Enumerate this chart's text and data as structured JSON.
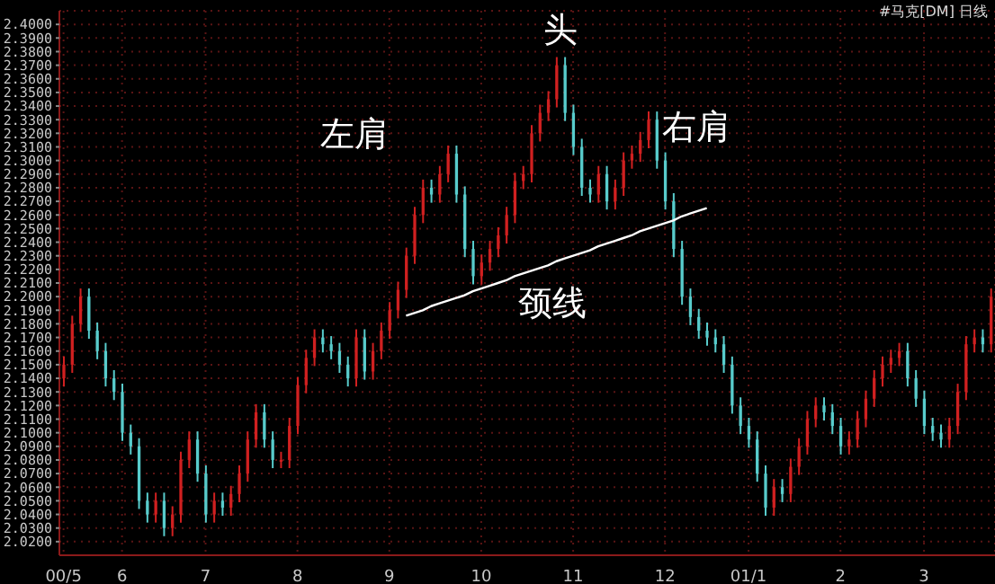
{
  "chart_data": {
    "type": "candlestick",
    "subtitle": "#马克[DM] 日线",
    "categories": [
      "00/5",
      null,
      null,
      null,
      null,
      null,
      null,
      "6",
      null,
      null,
      null,
      null,
      null,
      null,
      null,
      null,
      null,
      "7",
      null,
      null,
      null,
      null,
      null,
      null,
      null,
      null,
      null,
      null,
      "8",
      null,
      null,
      null,
      null,
      null,
      null,
      null,
      null,
      null,
      null,
      "9",
      null,
      null,
      null,
      null,
      null,
      null,
      null,
      null,
      null,
      null,
      "10",
      null,
      null,
      null,
      null,
      null,
      null,
      null,
      null,
      null,
      null,
      "11",
      null,
      null,
      null,
      null,
      null,
      null,
      null,
      null,
      null,
      null,
      "12",
      null,
      null,
      null,
      null,
      null,
      null,
      null,
      null,
      null,
      "01/1",
      null,
      null,
      null,
      null,
      null,
      null,
      null,
      null,
      null,
      null,
      "2",
      null,
      null,
      null,
      null,
      null,
      null,
      null,
      null,
      null,
      "3",
      null,
      null,
      null,
      null,
      null,
      null,
      null,
      null
    ],
    "ohlc": [
      [
        2.14,
        2.156,
        2.134,
        2.15
      ],
      [
        2.15,
        2.186,
        2.144,
        2.18
      ],
      [
        2.18,
        2.206,
        2.174,
        2.2
      ],
      [
        2.2,
        2.206,
        2.169,
        2.175
      ],
      [
        2.175,
        2.181,
        2.154,
        2.16
      ],
      [
        2.16,
        2.166,
        2.134,
        2.14
      ],
      [
        2.14,
        2.146,
        2.124,
        2.13
      ],
      [
        2.13,
        2.136,
        2.094,
        2.1
      ],
      [
        2.1,
        2.106,
        2.084,
        2.09
      ],
      [
        2.09,
        2.096,
        2.044,
        2.05
      ],
      [
        2.05,
        2.056,
        2.034,
        2.04
      ],
      [
        2.04,
        2.056,
        2.034,
        2.05
      ],
      [
        2.05,
        2.056,
        2.024,
        2.03
      ],
      [
        2.03,
        2.046,
        2.024,
        2.04
      ],
      [
        2.04,
        2.086,
        2.034,
        2.08
      ],
      [
        2.08,
        2.101,
        2.074,
        2.095
      ],
      [
        2.095,
        2.101,
        2.064,
        2.07
      ],
      [
        2.07,
        2.076,
        2.034,
        2.04
      ],
      [
        2.04,
        2.056,
        2.034,
        2.05
      ],
      [
        2.05,
        2.056,
        2.039,
        2.045
      ],
      [
        2.045,
        2.061,
        2.039,
        2.055
      ],
      [
        2.055,
        2.076,
        2.049,
        2.07
      ],
      [
        2.07,
        2.101,
        2.064,
        2.095
      ],
      [
        2.095,
        2.121,
        2.089,
        2.115
      ],
      [
        2.115,
        2.121,
        2.089,
        2.095
      ],
      [
        2.095,
        2.101,
        2.074,
        2.08
      ],
      [
        2.08,
        2.086,
        2.074,
        2.08
      ],
      [
        2.08,
        2.111,
        2.074,
        2.105
      ],
      [
        2.105,
        2.141,
        2.099,
        2.135
      ],
      [
        2.135,
        2.161,
        2.129,
        2.155
      ],
      [
        2.155,
        2.176,
        2.149,
        2.17
      ],
      [
        2.17,
        2.176,
        2.159,
        2.165
      ],
      [
        2.165,
        2.171,
        2.154,
        2.16
      ],
      [
        2.16,
        2.166,
        2.144,
        2.15
      ],
      [
        2.15,
        2.156,
        2.134,
        2.14
      ],
      [
        2.14,
        2.176,
        2.134,
        2.17
      ],
      [
        2.17,
        2.176,
        2.139,
        2.145
      ],
      [
        2.145,
        2.166,
        2.139,
        2.16
      ],
      [
        2.16,
        2.181,
        2.154,
        2.175
      ],
      [
        2.175,
        2.196,
        2.169,
        2.19
      ],
      [
        2.19,
        2.211,
        2.184,
        2.205
      ],
      [
        2.205,
        2.236,
        2.199,
        2.23
      ],
      [
        2.23,
        2.266,
        2.224,
        2.26
      ],
      [
        2.26,
        2.286,
        2.254,
        2.28
      ],
      [
        2.28,
        2.286,
        2.269,
        2.275
      ],
      [
        2.275,
        2.296,
        2.269,
        2.29
      ],
      [
        2.29,
        2.311,
        2.284,
        2.305
      ],
      [
        2.305,
        2.311,
        2.269,
        2.275
      ],
      [
        2.275,
        2.281,
        2.229,
        2.235
      ],
      [
        2.235,
        2.241,
        2.209,
        2.215
      ],
      [
        2.215,
        2.231,
        2.209,
        2.225
      ],
      [
        2.225,
        2.241,
        2.219,
        2.235
      ],
      [
        2.235,
        2.251,
        2.229,
        2.245
      ],
      [
        2.245,
        2.266,
        2.239,
        2.26
      ],
      [
        2.26,
        2.291,
        2.254,
        2.285
      ],
      [
        2.285,
        2.296,
        2.279,
        2.29
      ],
      [
        2.29,
        2.326,
        2.284,
        2.32
      ],
      [
        2.32,
        2.341,
        2.314,
        2.335
      ],
      [
        2.335,
        2.351,
        2.329,
        2.345
      ],
      [
        2.345,
        2.376,
        2.339,
        2.37
      ],
      [
        2.37,
        2.376,
        2.329,
        2.335
      ],
      [
        2.335,
        2.341,
        2.304,
        2.31
      ],
      [
        2.31,
        2.316,
        2.274,
        2.28
      ],
      [
        2.28,
        2.286,
        2.269,
        2.275
      ],
      [
        2.275,
        2.296,
        2.269,
        2.29
      ],
      [
        2.29,
        2.296,
        2.264,
        2.27
      ],
      [
        2.27,
        2.286,
        2.264,
        2.28
      ],
      [
        2.28,
        2.306,
        2.274,
        2.3
      ],
      [
        2.3,
        2.311,
        2.294,
        2.305
      ],
      [
        2.305,
        2.321,
        2.299,
        2.315
      ],
      [
        2.315,
        2.336,
        2.309,
        2.33
      ],
      [
        2.33,
        2.336,
        2.294,
        2.3
      ],
      [
        2.3,
        2.306,
        2.264,
        2.27
      ],
      [
        2.27,
        2.276,
        2.229,
        2.235
      ],
      [
        2.235,
        2.241,
        2.194,
        2.2
      ],
      [
        2.2,
        2.206,
        2.179,
        2.185
      ],
      [
        2.185,
        2.191,
        2.169,
        2.175
      ],
      [
        2.175,
        2.181,
        2.164,
        2.17
      ],
      [
        2.17,
        2.176,
        2.159,
        2.165
      ],
      [
        2.165,
        2.171,
        2.144,
        2.15
      ],
      [
        2.15,
        2.156,
        2.114,
        2.12
      ],
      [
        2.12,
        2.126,
        2.099,
        2.105
      ],
      [
        2.105,
        2.111,
        2.089,
        2.095
      ],
      [
        2.095,
        2.101,
        2.064,
        2.07
      ],
      [
        2.07,
        2.076,
        2.039,
        2.045
      ],
      [
        2.045,
        2.066,
        2.039,
        2.06
      ],
      [
        2.06,
        2.066,
        2.049,
        2.055
      ],
      [
        2.055,
        2.081,
        2.049,
        2.075
      ],
      [
        2.075,
        2.096,
        2.069,
        2.09
      ],
      [
        2.09,
        2.116,
        2.084,
        2.11
      ],
      [
        2.11,
        2.126,
        2.104,
        2.12
      ],
      [
        2.12,
        2.126,
        2.109,
        2.115
      ],
      [
        2.115,
        2.121,
        2.099,
        2.105
      ],
      [
        2.105,
        2.111,
        2.084,
        2.09
      ],
      [
        2.09,
        2.101,
        2.084,
        2.095
      ],
      [
        2.095,
        2.116,
        2.089,
        2.11
      ],
      [
        2.11,
        2.131,
        2.104,
        2.125
      ],
      [
        2.125,
        2.146,
        2.119,
        2.14
      ],
      [
        2.14,
        2.156,
        2.134,
        2.15
      ],
      [
        2.15,
        2.161,
        2.144,
        2.155
      ],
      [
        2.155,
        2.166,
        2.149,
        2.16
      ],
      [
        2.16,
        2.166,
        2.134,
        2.14
      ],
      [
        2.14,
        2.146,
        2.119,
        2.125
      ],
      [
        2.125,
        2.131,
        2.099,
        2.105
      ],
      [
        2.105,
        2.111,
        2.094,
        2.1
      ],
      [
        2.1,
        2.106,
        2.089,
        2.095
      ],
      [
        2.095,
        2.111,
        2.089,
        2.105
      ],
      [
        2.105,
        2.136,
        2.099,
        2.13
      ],
      [
        2.13,
        2.171,
        2.124,
        2.165
      ],
      [
        2.165,
        2.176,
        2.159,
        2.17
      ],
      [
        2.17,
        2.176,
        2.159,
        2.165
      ],
      [
        2.165,
        2.206,
        2.159,
        2.2
      ]
    ],
    "series": [
      {
        "type": "line",
        "color": "#ffffff",
        "values": [
          null,
          null,
          null,
          null,
          null,
          null,
          null,
          null,
          null,
          null,
          null,
          null,
          null,
          null,
          null,
          null,
          null,
          null,
          null,
          null,
          null,
          null,
          null,
          null,
          null,
          null,
          null,
          null,
          null,
          null,
          null,
          null,
          null,
          null,
          null,
          null,
          null,
          null,
          null,
          null,
          null,
          2.186,
          2.188,
          2.19,
          2.193,
          2.195,
          2.197,
          2.199,
          2.201,
          2.204,
          2.206,
          2.208,
          2.21,
          2.212,
          2.215,
          2.217,
          2.219,
          2.221,
          2.223,
          2.226,
          2.228,
          2.23,
          2.232,
          2.234,
          2.237,
          2.239,
          2.241,
          2.243,
          2.245,
          2.248,
          2.25,
          2.252,
          2.254,
          2.256,
          2.259,
          2.261,
          2.263,
          2.265,
          null,
          null,
          null,
          null,
          null,
          null,
          null,
          null,
          null,
          null,
          null,
          null,
          null,
          null,
          null,
          null,
          null,
          null,
          null,
          null,
          null,
          null,
          null,
          null,
          null,
          null,
          null,
          null,
          null,
          null,
          null,
          null,
          null,
          null
        ]
      }
    ],
    "annotations": [
      "左肩",
      "头",
      "右肩",
      "颈线"
    ],
    "ylim": [
      2.01,
      2.41
    ],
    "yticks": [
      {
        "value": 2.02,
        "label": "2.0200"
      },
      {
        "value": 2.03,
        "label": "2.0300"
      },
      {
        "value": 2.04,
        "label": "2.0400"
      },
      {
        "value": 2.05,
        "label": "2.0500"
      },
      {
        "value": 2.06,
        "label": "2.0600"
      },
      {
        "value": 2.07,
        "label": "2.0700"
      },
      {
        "value": 2.08,
        "label": "2.0800"
      },
      {
        "value": 2.09,
        "label": "2.0900"
      },
      {
        "value": 2.1,
        "label": "2.1000"
      },
      {
        "value": 2.11,
        "label": "2.1100"
      },
      {
        "value": 2.12,
        "label": "2.1200"
      },
      {
        "value": 2.13,
        "label": "2.1300"
      },
      {
        "value": 2.14,
        "label": "2.1400"
      },
      {
        "value": 2.15,
        "label": "2.1500"
      },
      {
        "value": 2.16,
        "label": "2.1600"
      },
      {
        "value": 2.17,
        "label": "2.1700"
      },
      {
        "value": 2.18,
        "label": "2.1800"
      },
      {
        "value": 2.19,
        "label": "2.1900"
      },
      {
        "value": 2.2,
        "label": "2.2000"
      },
      {
        "value": 2.21,
        "label": "2.2100"
      },
      {
        "value": 2.22,
        "label": "2.2200"
      },
      {
        "value": 2.23,
        "label": "2.2300"
      },
      {
        "value": 2.24,
        "label": "2.2400"
      },
      {
        "value": 2.25,
        "label": "2.2500"
      },
      {
        "value": 2.26,
        "label": "2.2600"
      },
      {
        "value": 2.27,
        "label": "2.2700"
      },
      {
        "value": 2.28,
        "label": "2.2800"
      },
      {
        "value": 2.29,
        "label": "2.2900"
      },
      {
        "value": 2.3,
        "label": "2.3000"
      },
      {
        "value": 2.31,
        "label": "2.3100"
      },
      {
        "value": 2.32,
        "label": "2.3200"
      },
      {
        "value": 2.33,
        "label": "2.3300"
      },
      {
        "value": 2.34,
        "label": "2.3400"
      },
      {
        "value": 2.35,
        "label": "2.3500"
      },
      {
        "value": 2.36,
        "label": "2.3600"
      },
      {
        "value": 2.37,
        "label": "2.3700"
      },
      {
        "value": 2.38,
        "label": "2.3800"
      },
      {
        "value": 2.39,
        "label": "2.3900"
      },
      {
        "value": 2.4,
        "label": "2.4000"
      }
    ],
    "grid": true
  }
}
